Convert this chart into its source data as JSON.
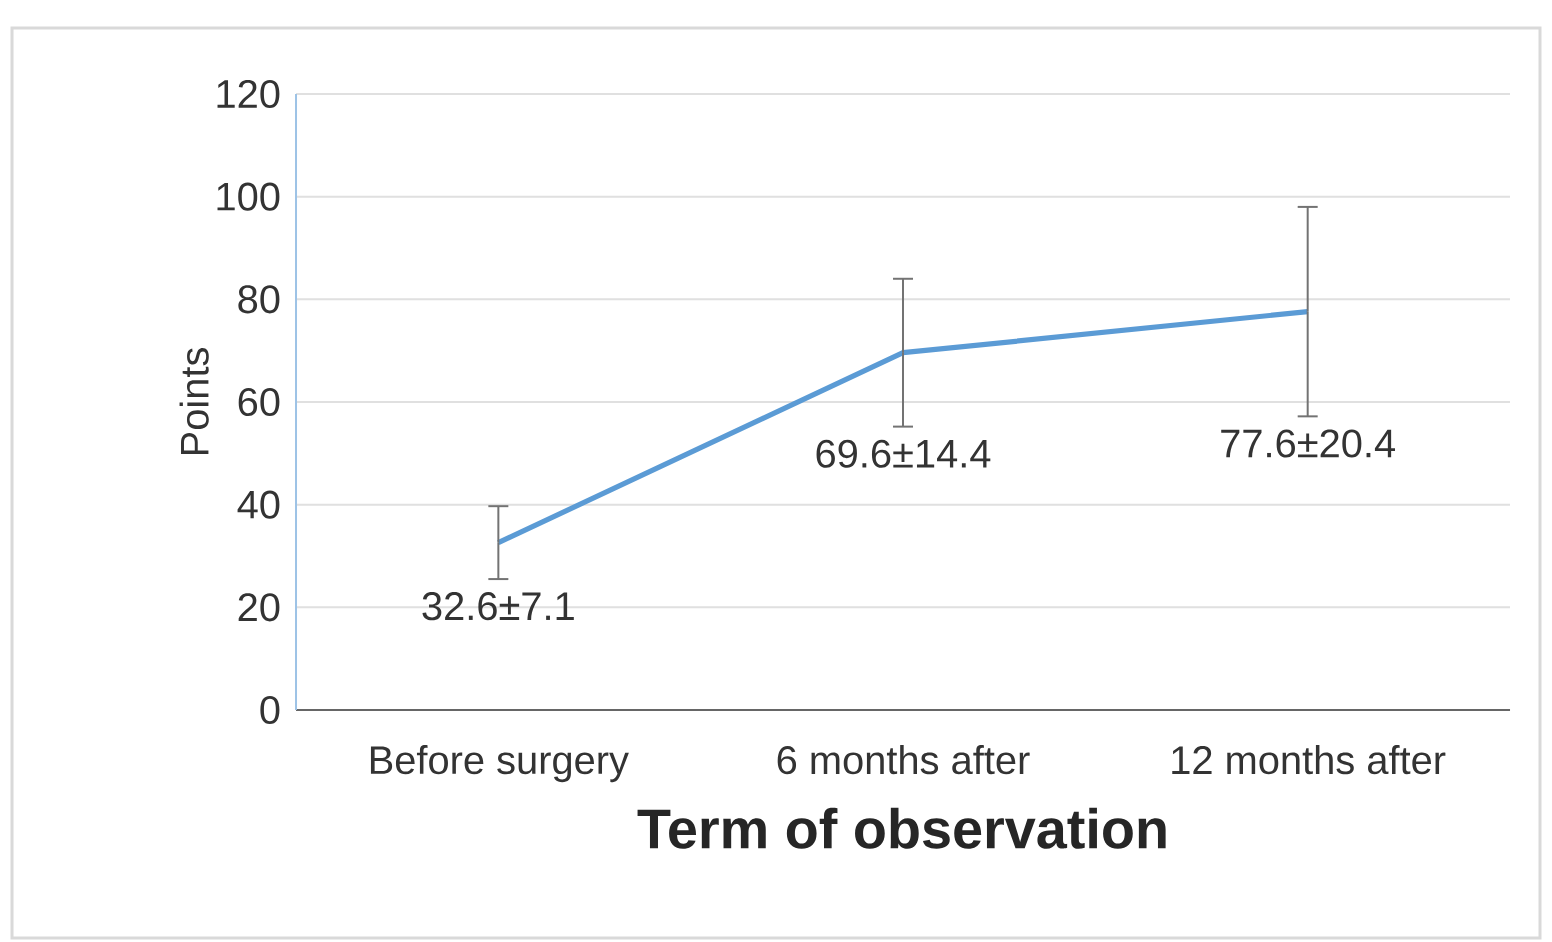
{
  "chart_data": {
    "type": "line",
    "categories": [
      "Before surgery",
      "6 months after",
      "12 months after"
    ],
    "values": [
      32.6,
      69.6,
      77.6
    ],
    "errors": [
      7.1,
      14.4,
      20.4
    ],
    "value_labels": [
      "32.6±7.1",
      "69.6±14.4",
      "77.6±20.4"
    ],
    "color": "#5b9bd5",
    "xlabel": "Term of observation",
    "ylabel": "Points",
    "ylim": [
      0,
      120
    ],
    "yticks": [
      0,
      20,
      40,
      60,
      80,
      100,
      120
    ],
    "grid": "y",
    "marker": "none"
  }
}
